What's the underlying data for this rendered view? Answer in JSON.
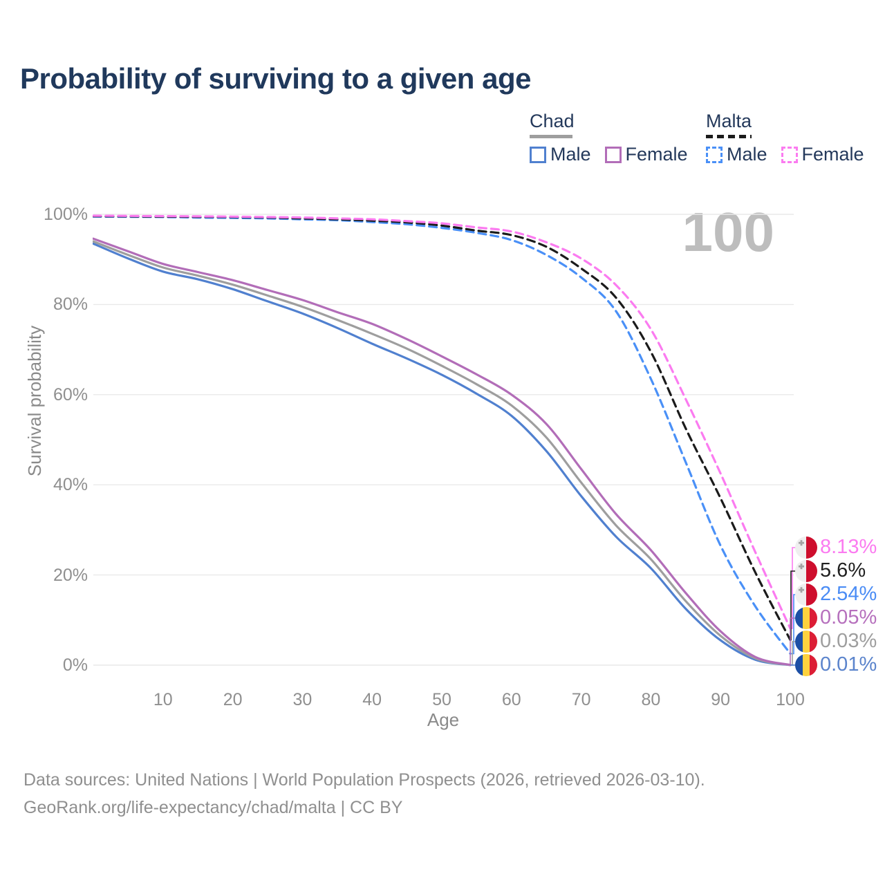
{
  "title": "Probability of surviving to a given age",
  "watermark": "100",
  "legend": {
    "groups": [
      {
        "name": "Chad",
        "line_style": "solid",
        "line_color": "#9e9e9e",
        "items": [
          {
            "label": "Male",
            "color": "#5080cf",
            "dashed": false
          },
          {
            "label": "Female",
            "color": "#b26db8",
            "dashed": false
          }
        ]
      },
      {
        "name": "Malta",
        "line_style": "dashed",
        "line_color": "#1b1b1b",
        "items": [
          {
            "label": "Male",
            "color": "#4a90f7",
            "dashed": true
          },
          {
            "label": "Female",
            "color": "#fb7bf0",
            "dashed": true
          }
        ]
      }
    ]
  },
  "chart_data": {
    "type": "line",
    "title": "Probability of surviving to a given age",
    "xlabel": "Age",
    "ylabel": "Survival probability",
    "xlim": [
      0,
      100
    ],
    "ylim": [
      0,
      100
    ],
    "x_ticks": [
      10,
      20,
      30,
      40,
      50,
      60,
      70,
      80,
      90,
      100
    ],
    "y_ticks": [
      0,
      20,
      40,
      60,
      80,
      100
    ],
    "y_tick_suffix": "%",
    "grid": true,
    "legend_position": "top-right",
    "x": [
      0,
      5,
      10,
      15,
      20,
      25,
      30,
      35,
      40,
      45,
      50,
      55,
      60,
      65,
      70,
      75,
      80,
      85,
      90,
      95,
      100
    ],
    "series": [
      {
        "name": "Malta Female",
        "country": "Malta",
        "sex": "Female",
        "color": "#fb7bf0",
        "dashed": true,
        "flag": "malta",
        "end_label": "8.13%",
        "end_label_color": "#fb7bf0",
        "values": [
          99.7,
          99.65,
          99.6,
          99.55,
          99.5,
          99.4,
          99.3,
          99.1,
          98.9,
          98.5,
          98.0,
          97.1,
          96.2,
          93.8,
          90.2,
          84.3,
          74.5,
          59.0,
          42.5,
          25.0,
          8.13
        ]
      },
      {
        "name": "Malta",
        "country": "Malta",
        "sex": "Both",
        "color": "#1b1b1b",
        "dashed": true,
        "flag": "malta",
        "end_label": "5.6%",
        "end_label_color": "#1f1f1f",
        "values": [
          99.6,
          99.55,
          99.5,
          99.45,
          99.4,
          99.3,
          99.1,
          98.9,
          98.6,
          98.2,
          97.5,
          96.4,
          95.4,
          92.8,
          88.0,
          81.5,
          69.5,
          52.5,
          37.0,
          20.5,
          5.6
        ]
      },
      {
        "name": "Malta Male",
        "country": "Malta",
        "sex": "Male",
        "color": "#4a90f7",
        "dashed": true,
        "flag": "malta",
        "end_label": "2.54%",
        "end_label_color": "#4a8cf5",
        "values": [
          99.5,
          99.45,
          99.4,
          99.3,
          99.2,
          99.1,
          98.9,
          98.7,
          98.3,
          97.8,
          97.0,
          95.9,
          94.3,
          91.0,
          86.0,
          78.5,
          63.5,
          45.0,
          26.5,
          13.0,
          2.54
        ]
      },
      {
        "name": "Chad Female",
        "country": "Chad",
        "sex": "Female",
        "color": "#b26db8",
        "dashed": false,
        "flag": "chad",
        "end_label": "0.05%",
        "end_label_color": "#b670bd",
        "values": [
          94.6,
          91.8,
          89.0,
          87.2,
          85.4,
          83.2,
          81.0,
          78.3,
          75.7,
          72.3,
          68.5,
          64.5,
          60.0,
          53.5,
          43.5,
          33.5,
          25.5,
          16.0,
          7.5,
          1.8,
          0.05
        ]
      },
      {
        "name": "Chad",
        "country": "Chad",
        "sex": "Both",
        "color": "#9e9e9e",
        "dashed": false,
        "flag": "chad",
        "end_label": "0.03%",
        "end_label_color": "#9e9e9e",
        "values": [
          94.0,
          91.0,
          88.2,
          86.4,
          84.4,
          82.0,
          79.5,
          76.6,
          73.5,
          70.2,
          66.4,
          62.3,
          57.6,
          50.5,
          40.5,
          31.0,
          23.5,
          14.2,
          6.5,
          1.5,
          0.03
        ]
      },
      {
        "name": "Chad Male",
        "country": "Chad",
        "sex": "Male",
        "color": "#5080cf",
        "dashed": false,
        "flag": "chad",
        "end_label": "0.01%",
        "end_label_color": "#5b84cc",
        "values": [
          93.5,
          90.2,
          87.3,
          85.6,
          83.4,
          80.7,
          78.0,
          74.8,
          71.3,
          68.0,
          64.4,
          60.2,
          55.3,
          47.5,
          37.5,
          28.5,
          21.5,
          12.5,
          5.5,
          1.2,
          0.01
        ]
      }
    ]
  },
  "footer": {
    "line1": "Data sources: United Nations | World Population Prospects (2026, retrieved 2026-03-10).",
    "line2": "GeoRank.org/life-expectancy/chad/malta | CC BY"
  },
  "colors": {
    "grid": "#e9e9e9",
    "tick_text": "#8f8f8f",
    "title_text": "#20395c",
    "watermark": "#bdbdbd"
  }
}
